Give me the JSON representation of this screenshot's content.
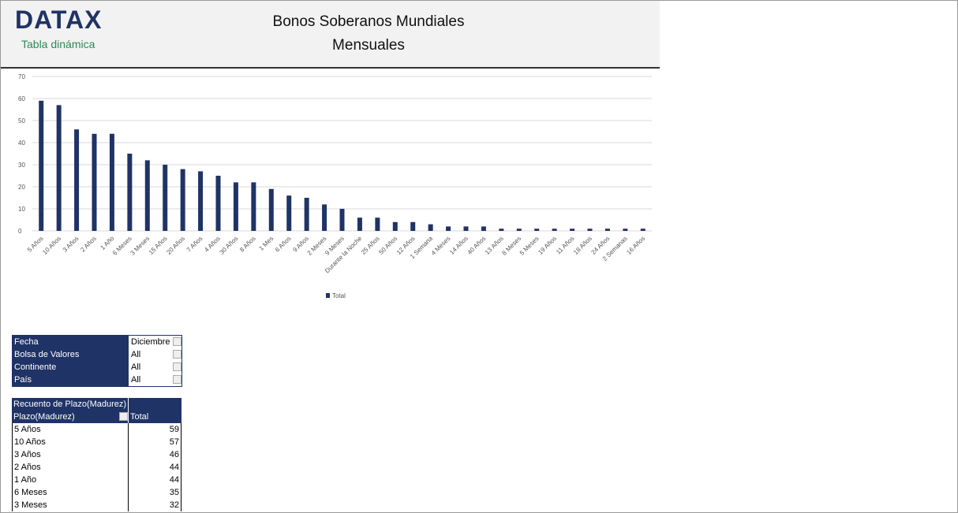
{
  "header": {
    "logo": "DATAX",
    "subtitle": "Tabla dinámica",
    "title_line1": "Bonos Soberanos Mundiales",
    "title_line2": "Mensuales"
  },
  "chart_data": {
    "type": "bar",
    "categories": [
      "5 Años",
      "10 Años",
      "3 Años",
      "2 Años",
      "1 Año",
      "6 Meses",
      "3 Meses",
      "15 Años",
      "20 Años",
      "7 Años",
      "4 Años",
      "30 Años",
      "8 Años",
      "1 Mes",
      "6 Años",
      "9 Años",
      "2 Meses",
      "9 Meses",
      "Durante la Noche",
      "25 Años",
      "50 Años",
      "12 Años",
      "1 Semana",
      "4 Meses",
      "14 Años",
      "40 Años",
      "13 Años",
      "8 Meses",
      "5 Meses",
      "19 Años",
      "11 Años",
      "18 Años",
      "24 Años",
      "2 Semanas",
      "16 Años"
    ],
    "series": [
      {
        "name": "Total",
        "color": "#1f3366",
        "values": [
          59,
          57,
          46,
          44,
          44,
          35,
          32,
          30,
          28,
          27,
          25,
          22,
          22,
          19,
          16,
          15,
          12,
          10,
          6,
          6,
          4,
          4,
          3,
          2,
          2,
          2,
          1,
          1,
          1,
          1,
          1,
          1,
          1,
          1,
          1
        ]
      }
    ],
    "ylim": [
      0,
      70
    ],
    "yticks": [
      0,
      10,
      20,
      30,
      40,
      50,
      60,
      70
    ],
    "grid": true,
    "legend": "bottom"
  },
  "filters": {
    "rows": [
      [
        "Fecha",
        "Diciembre"
      ],
      [
        "Bolsa de Valores",
        "All"
      ],
      [
        "Continente",
        "All"
      ],
      [
        "País",
        "All"
      ]
    ]
  },
  "pivot": {
    "title": "Recuento de Plazo(Madurez)",
    "headers": [
      "Plazo(Madurez)",
      "Total"
    ],
    "rows": [
      [
        "5 Años",
        59
      ],
      [
        "10 Años",
        57
      ],
      [
        "3 Años",
        46
      ],
      [
        "2 Años",
        44
      ],
      [
        "1 Año",
        44
      ],
      [
        "6 Meses",
        35
      ],
      [
        "3 Meses",
        32
      ]
    ]
  }
}
